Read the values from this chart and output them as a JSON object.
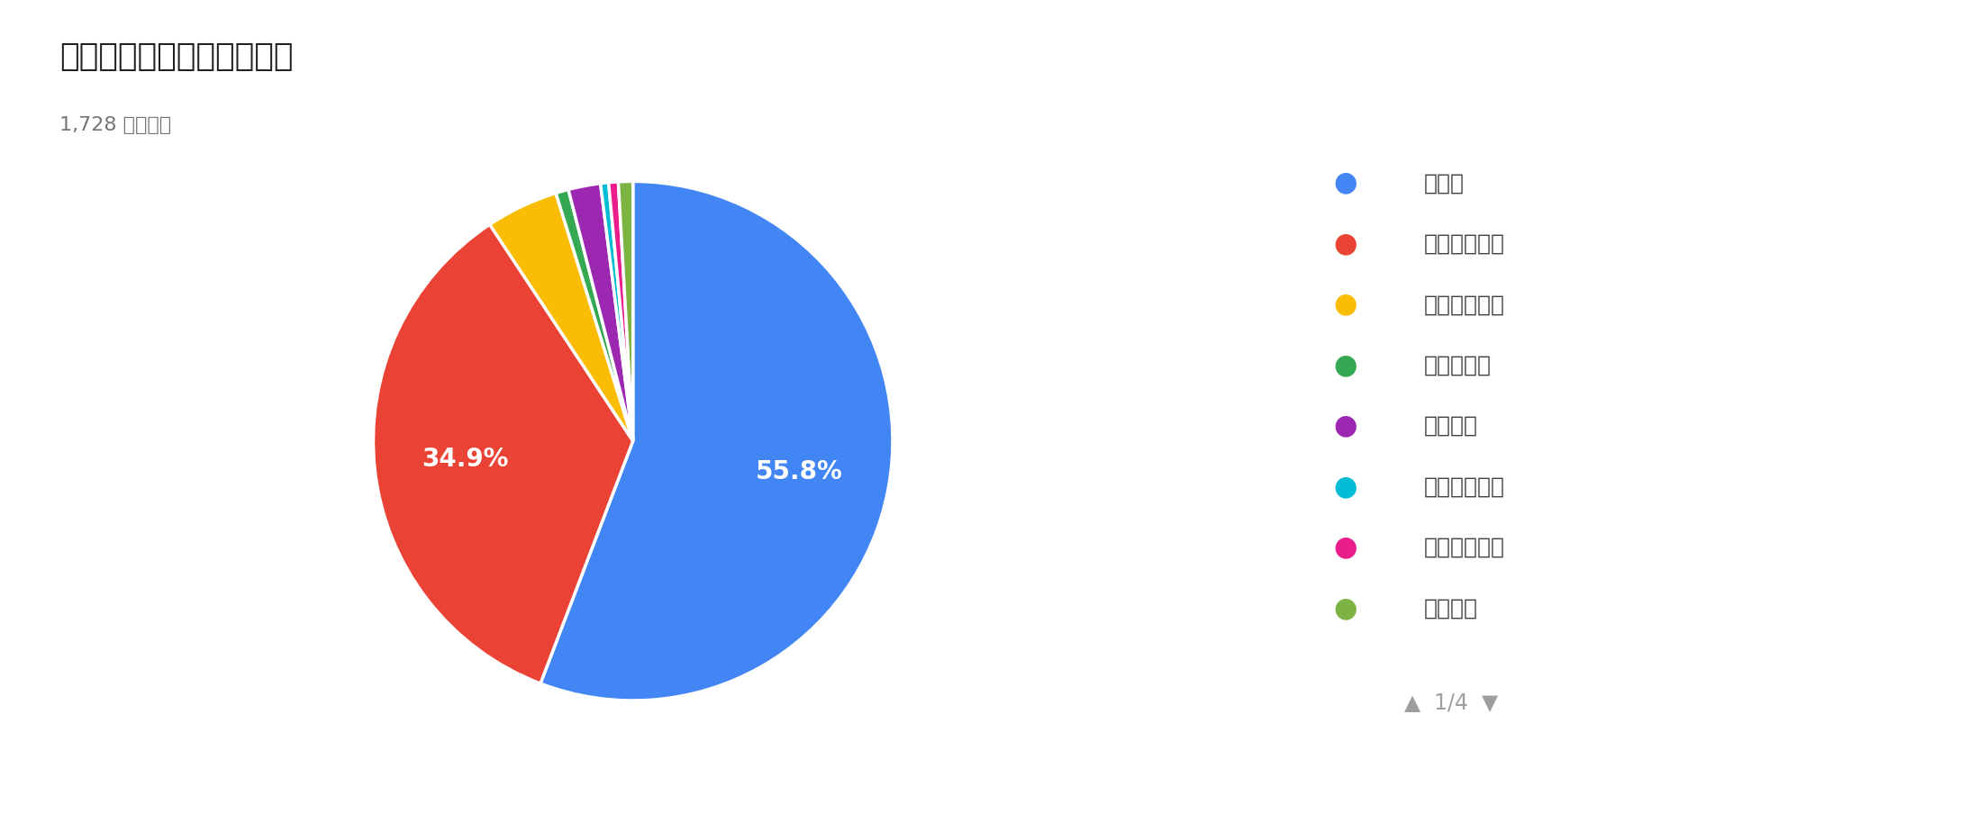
{
  "title": "普段使っているお財布は？",
  "subtitle": "1,728 件の回答",
  "labels": [
    "長財布",
    "二つ折り財布",
    "三つ折り財布",
    "がま口財布",
    "小銭入れ",
    "スマホケース",
    "持っていない",
    "ミニ財布"
  ],
  "percentages": [
    55.8,
    34.9,
    4.5,
    0.8,
    2.0,
    0.5,
    0.6,
    0.9
  ],
  "colors": [
    "#4285F4",
    "#EA4335",
    "#FBBC04",
    "#34A853",
    "#9C27B0",
    "#00BCD4",
    "#E91E8C",
    "#7CB342"
  ],
  "bg_color": "#ffffff",
  "title_fontsize": 26,
  "subtitle_fontsize": 16,
  "legend_fontsize": 18,
  "pct_fontsize": 20,
  "startangle": 90,
  "page_indicator": "1/4"
}
